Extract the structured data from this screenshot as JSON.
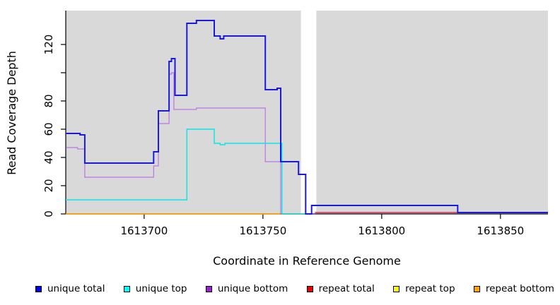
{
  "chart_data": {
    "type": "line",
    "subtype": "step-coverage-plot",
    "title": "",
    "xlabel": "Coordinate in Reference Genome",
    "ylabel": "Read Coverage Depth",
    "xlim": [
      1613667,
      1613870
    ],
    "ylim": [
      0,
      144
    ],
    "grid": false,
    "legend_position": "bottom",
    "panel_background": "#d9d9d9",
    "panel_regions": [
      [
        1613667,
        1613766
      ],
      [
        1613772.5,
        1613870
      ]
    ],
    "x_ticks": [
      1613700,
      1613750,
      1613800,
      1613850
    ],
    "x_tick_labels": [
      "1613700",
      "1613750",
      "1613800",
      "1613850"
    ],
    "y_ticks": [
      0,
      20,
      40,
      60,
      80,
      100,
      120
    ],
    "y_tick_labels": [
      "0",
      "20",
      "40",
      "60",
      "80",
      "",
      "120"
    ],
    "series": [
      {
        "name": "repeat top",
        "color": "#ffff00",
        "line_width": 1.3,
        "line_opacity": 1,
        "segments": [
          [
            [
              1613667,
              0
            ],
            [
              1613768,
              0
            ]
          ]
        ]
      },
      {
        "name": "repeat bottom",
        "color": "#ff9800",
        "line_width": 1.5,
        "line_opacity": 1,
        "segments": [
          [
            [
              1613667,
              0
            ],
            [
              1613768,
              0
            ]
          ]
        ]
      },
      {
        "name": "unique bottom",
        "color": "#a020f0",
        "line_width": 1.2,
        "line_opacity": 0.55,
        "segments": [
          [
            [
              1613667,
              47
            ],
            [
              1613672,
              47
            ],
            [
              1613672,
              46
            ],
            [
              1613675,
              46
            ],
            [
              1613675,
              26
            ],
            [
              1613704,
              26
            ],
            [
              1613704,
              34
            ],
            [
              1613706,
              34
            ],
            [
              1613706,
              64
            ],
            [
              1613710.5,
              64
            ],
            [
              1613710.5,
              99
            ],
            [
              1613711.5,
              99
            ],
            [
              1613711.5,
              100
            ],
            [
              1613712.5,
              100
            ],
            [
              1613712.5,
              74
            ],
            [
              1613722,
              74
            ],
            [
              1613722,
              75
            ],
            [
              1613751,
              75
            ],
            [
              1613751,
              37
            ],
            [
              1613757.5,
              37
            ],
            [
              1613757.5,
              0
            ],
            [
              1613772,
              0
            ],
            [
              1613772,
              1
            ],
            [
              1613870,
              1
            ]
          ]
        ]
      },
      {
        "name": "repeat total",
        "color": "#e8001c",
        "line_width": 1.2,
        "line_opacity": 0.85,
        "segments": [
          [
            [
              1613772,
              1
            ],
            [
              1613870,
              1
            ]
          ]
        ]
      },
      {
        "name": "unique top",
        "color": "#00e5e5",
        "line_width": 1.4,
        "line_opacity": 0.95,
        "segments": [
          [
            [
              1613667,
              10
            ],
            [
              1613718,
              10
            ],
            [
              1613718,
              60
            ],
            [
              1613729.5,
              60
            ],
            [
              1613729.5,
              50
            ],
            [
              1613732,
              50
            ],
            [
              1613732,
              49
            ],
            [
              1613734,
              49
            ],
            [
              1613734,
              50
            ],
            [
              1613758,
              50
            ],
            [
              1613758,
              0
            ],
            [
              1613768,
              0
            ]
          ]
        ]
      },
      {
        "name": "unique total",
        "color": "#1a1adf",
        "line_width": 2,
        "line_opacity": 1,
        "segments": [
          [
            [
              1613667,
              57
            ],
            [
              1613673,
              57
            ],
            [
              1613673,
              56
            ],
            [
              1613675,
              56
            ],
            [
              1613675,
              36
            ],
            [
              1613704,
              36
            ],
            [
              1613704,
              44
            ],
            [
              1613706,
              44
            ],
            [
              1613706,
              73
            ],
            [
              1613710.5,
              73
            ],
            [
              1613710.5,
              108
            ],
            [
              1613711.5,
              108
            ],
            [
              1613711.5,
              110
            ],
            [
              1613713,
              110
            ],
            [
              1613713,
              84
            ],
            [
              1613718,
              84
            ],
            [
              1613718,
              135
            ],
            [
              1613722,
              135
            ],
            [
              1613722,
              137
            ],
            [
              1613729.5,
              137
            ],
            [
              1613729.5,
              126
            ],
            [
              1613732,
              126
            ],
            [
              1613732,
              124
            ],
            [
              1613733.5,
              124
            ],
            [
              1613733.5,
              126
            ],
            [
              1613751,
              126
            ],
            [
              1613751,
              88
            ],
            [
              1613756,
              88
            ],
            [
              1613756,
              89
            ],
            [
              1613757.5,
              89
            ],
            [
              1613757.5,
              37
            ],
            [
              1613765,
              37
            ],
            [
              1613765,
              28
            ],
            [
              1613768,
              28
            ],
            [
              1613768,
              0
            ],
            [
              1613770.5,
              0
            ],
            [
              1613770.5,
              6
            ],
            [
              1613832,
              6
            ],
            [
              1613832,
              1
            ],
            [
              1613870,
              1
            ]
          ]
        ]
      }
    ]
  },
  "legend": {
    "items": [
      {
        "label": "unique total",
        "color": "#0000ee"
      },
      {
        "label": "unique top",
        "color": "#00ffff"
      },
      {
        "label": "unique bottom",
        "color": "#9a20d0"
      },
      {
        "label": "repeat total",
        "color": "#ee0000"
      },
      {
        "label": "repeat top",
        "color": "#ffff00"
      },
      {
        "label": "repeat bottom",
        "color": "#ffa500"
      }
    ]
  }
}
